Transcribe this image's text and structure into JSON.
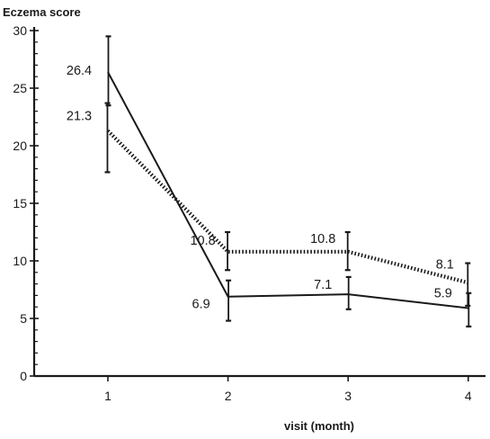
{
  "chart_data": {
    "type": "line",
    "title": "",
    "xlabel": "visit (month)",
    "ylabel": "Eczema score",
    "x": [
      1,
      2,
      3,
      4
    ],
    "xticks": [
      "1",
      "2",
      "3",
      "4"
    ],
    "yticks": [
      "0",
      "5",
      "10",
      "15",
      "20",
      "25",
      "30"
    ],
    "xlim": [
      0.4,
      4.2
    ],
    "ylim": [
      0,
      30
    ],
    "grid": false,
    "legend": "none",
    "series": [
      {
        "style": "solid",
        "color": "#1a1a1a",
        "values": [
          26.4,
          6.9,
          7.1,
          5.9
        ],
        "error_low": [
          23.5,
          4.8,
          5.8,
          4.3
        ],
        "error_high": [
          29.5,
          8.3,
          8.6,
          7.2
        ],
        "labels": [
          "26.4",
          "6.9",
          "7.1",
          "5.9"
        ]
      },
      {
        "style": "dotted",
        "color": "#1a1a1a",
        "values": [
          21.3,
          10.8,
          10.8,
          8.1
        ],
        "error_low": [
          17.7,
          9.2,
          9.2,
          6.1
        ],
        "error_high": [
          23.7,
          12.5,
          12.5,
          9.8
        ],
        "labels": [
          "21.3",
          "10.8",
          "10.8",
          "8.1"
        ]
      }
    ]
  }
}
